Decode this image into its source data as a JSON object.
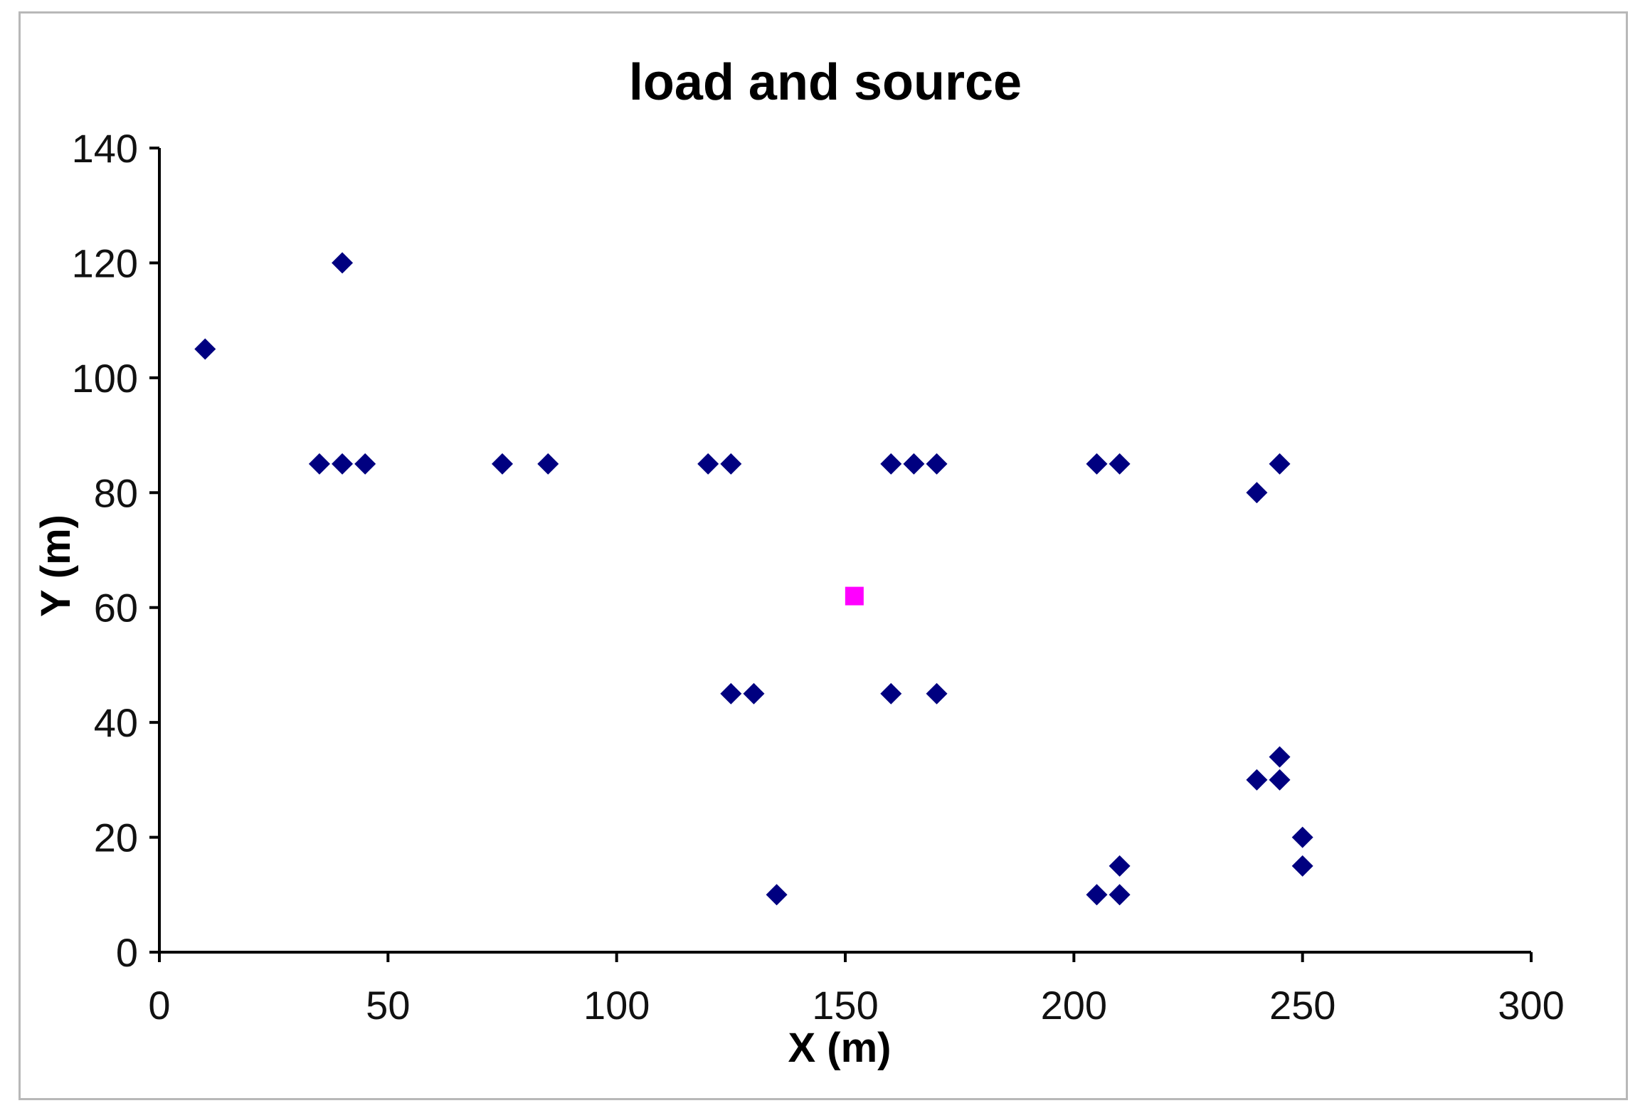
{
  "chart_data": {
    "type": "scatter",
    "title": "load and source",
    "xlabel": "X (m)",
    "ylabel": "Y (m)",
    "xlim": [
      0,
      300
    ],
    "ylim": [
      0,
      140
    ],
    "xticks": [
      0,
      50,
      100,
      150,
      200,
      250,
      300
    ],
    "yticks": [
      0,
      20,
      40,
      60,
      80,
      100,
      120,
      140
    ],
    "grid": false,
    "legend": "none",
    "series": [
      {
        "marker": "diamond",
        "color": "#000080",
        "points": [
          {
            "x": 10,
            "y": 105
          },
          {
            "x": 40,
            "y": 120
          },
          {
            "x": 35,
            "y": 85
          },
          {
            "x": 40,
            "y": 85
          },
          {
            "x": 45,
            "y": 85
          },
          {
            "x": 75,
            "y": 85
          },
          {
            "x": 85,
            "y": 85
          },
          {
            "x": 120,
            "y": 85
          },
          {
            "x": 125,
            "y": 85
          },
          {
            "x": 160,
            "y": 85
          },
          {
            "x": 165,
            "y": 85
          },
          {
            "x": 170,
            "y": 85
          },
          {
            "x": 205,
            "y": 85
          },
          {
            "x": 210,
            "y": 85
          },
          {
            "x": 245,
            "y": 85
          },
          {
            "x": 240,
            "y": 80
          },
          {
            "x": 125,
            "y": 45
          },
          {
            "x": 130,
            "y": 45
          },
          {
            "x": 160,
            "y": 45
          },
          {
            "x": 170,
            "y": 45
          },
          {
            "x": 245,
            "y": 34
          },
          {
            "x": 240,
            "y": 30
          },
          {
            "x": 245,
            "y": 30
          },
          {
            "x": 250,
            "y": 20
          },
          {
            "x": 250,
            "y": 15
          },
          {
            "x": 210,
            "y": 15
          },
          {
            "x": 205,
            "y": 10
          },
          {
            "x": 210,
            "y": 10
          },
          {
            "x": 135,
            "y": 10
          }
        ]
      },
      {
        "marker": "square",
        "color": "#ff00ff",
        "points": [
          {
            "x": 152,
            "y": 62
          }
        ]
      }
    ]
  }
}
